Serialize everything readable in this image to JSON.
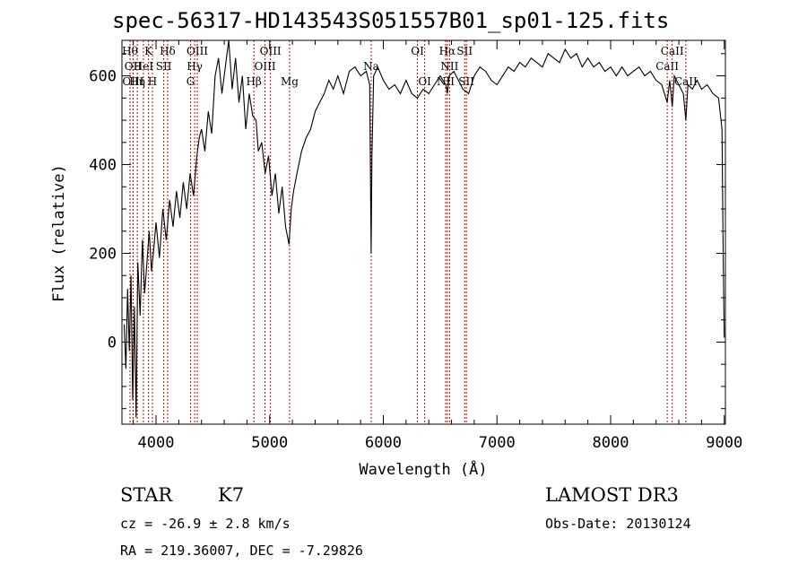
{
  "chart_data": {
    "type": "line",
    "title": "spec-56317-HD143543S051557B01_sp01-125.fits",
    "xlabel": "Wavelength (Å)",
    "ylabel": "Flux (relative)",
    "xlim": [
      3700,
      9010
    ],
    "ylim": [
      -185,
      680
    ],
    "xticks": [
      4000,
      5000,
      6000,
      7000,
      8000,
      9000
    ],
    "yticks": [
      0,
      200,
      400,
      600
    ],
    "grid": false,
    "series": [
      {
        "x": [
          3720,
          3735,
          3750,
          3765,
          3780,
          3795,
          3810,
          3825,
          3840,
          3860,
          3880,
          3900,
          3920,
          3940,
          3960,
          3980,
          4000,
          4030,
          4060,
          4090,
          4120,
          4150,
          4180,
          4210,
          4240,
          4270,
          4300,
          4330,
          4360,
          4380,
          4400,
          4430,
          4460,
          4490,
          4520,
          4550,
          4580,
          4610,
          4640,
          4670,
          4700,
          4730,
          4760,
          4790,
          4820,
          4850,
          4880,
          4900,
          4930,
          4960,
          4990,
          5020,
          5050,
          5080,
          5110,
          5140,
          5170,
          5190,
          5210,
          5240,
          5280,
          5320,
          5360,
          5400,
          5440,
          5480,
          5520,
          5560,
          5600,
          5650,
          5700,
          5750,
          5800,
          5850,
          5880,
          5893,
          5900,
          5915,
          5950,
          6000,
          6050,
          6100,
          6150,
          6200,
          6250,
          6300,
          6350,
          6400,
          6450,
          6500,
          6550,
          6563,
          6580,
          6620,
          6660,
          6700,
          6750,
          6800,
          6850,
          6900,
          6950,
          7000,
          7050,
          7100,
          7150,
          7200,
          7250,
          7300,
          7350,
          7400,
          7450,
          7500,
          7550,
          7600,
          7650,
          7700,
          7750,
          7800,
          7850,
          7900,
          7950,
          8000,
          8050,
          8100,
          8150,
          8200,
          8250,
          8300,
          8350,
          8400,
          8450,
          8498,
          8520,
          8542,
          8560,
          8600,
          8640,
          8662,
          8680,
          8720,
          8760,
          8800,
          8850,
          8900,
          8950,
          8980,
          8990,
          9000
        ],
        "y": [
          40,
          -60,
          120,
          -20,
          150,
          -130,
          80,
          -170,
          180,
          60,
          230,
          110,
          180,
          250,
          160,
          210,
          270,
          190,
          300,
          230,
          320,
          260,
          340,
          280,
          360,
          300,
          380,
          330,
          420,
          460,
          480,
          430,
          520,
          470,
          600,
          640,
          560,
          620,
          690,
          570,
          640,
          540,
          600,
          480,
          560,
          510,
          500,
          430,
          450,
          380,
          420,
          330,
          380,
          290,
          350,
          260,
          220,
          300,
          340,
          380,
          430,
          460,
          480,
          520,
          540,
          560,
          590,
          570,
          600,
          560,
          610,
          620,
          600,
          610,
          580,
          200,
          420,
          600,
          620,
          590,
          570,
          580,
          560,
          590,
          560,
          550,
          570,
          560,
          580,
          600,
          580,
          560,
          600,
          610,
          590,
          570,
          560,
          600,
          620,
          610,
          590,
          580,
          600,
          620,
          610,
          630,
          620,
          640,
          630,
          620,
          650,
          640,
          630,
          660,
          640,
          650,
          620,
          640,
          620,
          630,
          610,
          620,
          600,
          620,
          600,
          610,
          620,
          600,
          610,
          590,
          580,
          540,
          590,
          530,
          600,
          580,
          560,
          500,
          580,
          570,
          590,
          570,
          580,
          560,
          550,
          480,
          200,
          10
        ]
      }
    ],
    "line_markers": [
      {
        "wl": 3771,
        "label": "Hθ",
        "row": 1
      },
      {
        "wl": 3798,
        "label": "OII",
        "row": 2
      },
      {
        "wl": 3798,
        "label": "OIII",
        "row": 3
      },
      {
        "wl": 3835,
        "label": "Hη",
        "row": 3
      },
      {
        "wl": 3889,
        "label": "HeI",
        "row": 2
      },
      {
        "wl": 3934,
        "label": "K",
        "row": 1
      },
      {
        "wl": 3968,
        "label": "H",
        "row": 3
      },
      {
        "wl": 4068,
        "label": "SII",
        "row": 2
      },
      {
        "wl": 4102,
        "label": "Hδ",
        "row": 1
      },
      {
        "wl": 4304,
        "label": "G",
        "row": 3
      },
      {
        "wl": 4340,
        "label": "Hγ",
        "row": 2
      },
      {
        "wl": 4363,
        "label": "OIII",
        "row": 1
      },
      {
        "wl": 4861,
        "label": "Hβ",
        "row": 3
      },
      {
        "wl": 4959,
        "label": "OIII",
        "row": 2
      },
      {
        "wl": 5007,
        "label": "OIII",
        "row": 1
      },
      {
        "wl": 5175,
        "label": "Mg",
        "row": 3
      },
      {
        "wl": 5893,
        "label": "Na",
        "row": 2
      },
      {
        "wl": 6300,
        "label": "OI",
        "row": 1
      },
      {
        "wl": 6364,
        "label": "OI",
        "row": 3
      },
      {
        "wl": 6548,
        "label": "NII",
        "row": 3
      },
      {
        "wl": 6563,
        "label": "Hα",
        "row": 1
      },
      {
        "wl": 6583,
        "label": "NII",
        "row": 2
      },
      {
        "wl": 6716,
        "label": "SII",
        "row": 1
      },
      {
        "wl": 6731,
        "label": "SII",
        "row": 3
      },
      {
        "wl": 8498,
        "label": "CaII",
        "row": 2
      },
      {
        "wl": 8542,
        "label": "CaII",
        "row": 1
      },
      {
        "wl": 8662,
        "label": "CaII",
        "row": 3
      }
    ]
  },
  "info": {
    "object_class": "STAR",
    "subclass": "K7",
    "survey": "LAMOST DR3",
    "redshift": "cz = -26.9 ± 2.8 km/s",
    "obs_date": "Obs-Date: 20130124",
    "coords": "RA = 219.36007, DEC =  -7.29826"
  }
}
